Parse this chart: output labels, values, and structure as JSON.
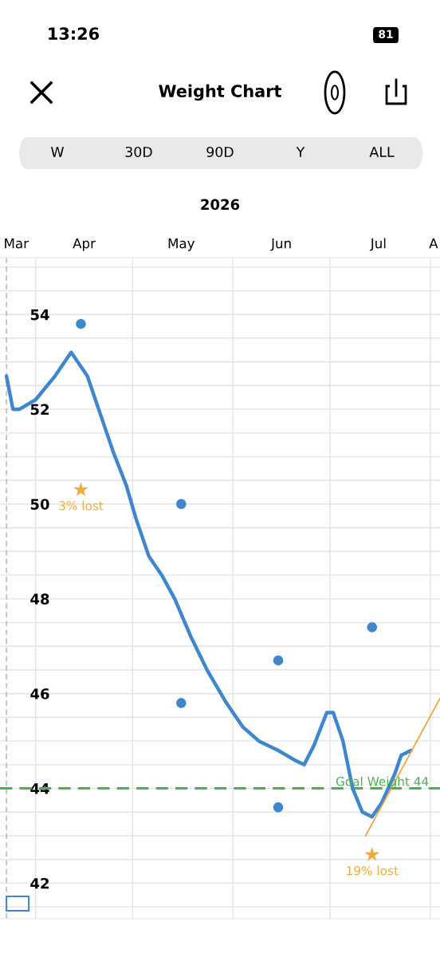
{
  "chart_data": {
    "type": "line",
    "title": "Weight Chart",
    "subtitle": "2026",
    "annotations": [
      "13:26",
      "81",
      "W",
      "30D",
      "90D",
      "Y",
      "ALL",
      {
        "text": "3% lost",
        "x": "2026-04-15",
        "y": 50.3
      },
      {
        "text": "19% lost",
        "x": "2026-07-14",
        "y": 42.6
      }
    ],
    "series": [
      {
        "color": "#3f87cc",
        "x": [
          "2026-03-23",
          "2026-03-25",
          "2026-03-27",
          "2026-04-01",
          "2026-04-07",
          "2026-04-12",
          "2026-04-17",
          "2026-04-21",
          "2026-04-25",
          "2026-04-29",
          "2026-05-02",
          "2026-05-06",
          "2026-05-10",
          "2026-05-14",
          "2026-05-19",
          "2026-05-24",
          "2026-05-30",
          "2026-06-04",
          "2026-06-09",
          "2026-06-15",
          "2026-06-20",
          "2026-06-23",
          "2026-06-26",
          "2026-06-30",
          "2026-07-02",
          "2026-07-05",
          "2026-07-08",
          "2026-07-11",
          "2026-07-14",
          "2026-07-17",
          "2026-07-21",
          "2026-07-23",
          "2026-07-26"
        ],
        "values": [
          52.7,
          52.0,
          52.0,
          52.2,
          52.7,
          53.2,
          52.7,
          51.9,
          51.1,
          50.4,
          49.7,
          48.9,
          48.5,
          48.0,
          47.2,
          46.5,
          45.8,
          45.3,
          45.0,
          44.8,
          44.6,
          44.5,
          44.9,
          45.6,
          45.6,
          45.0,
          44.0,
          43.5,
          43.4,
          43.7,
          44.3,
          44.7,
          44.8
        ]
      },
      {
        "type": "scatter",
        "color": "#3f87cc",
        "marker": "circle",
        "x": [
          "2026-04-15",
          "2026-05-16",
          "2026-05-16",
          "2026-06-15",
          "2026-06-15",
          "2026-07-14"
        ],
        "values": [
          53.8,
          50.0,
          45.8,
          46.7,
          43.6,
          47.4
        ]
      },
      {
        "type": "scatter",
        "color": "#f2a93b",
        "marker": "star",
        "x": [
          "2026-04-15",
          "2026-07-14"
        ],
        "values": [
          50.3,
          42.6
        ]
      },
      {
        "type": "line",
        "color": "#f0a03a",
        "x": [
          "2026-07-12",
          "2026-08-04"
        ],
        "values": [
          43.0,
          45.9
        ]
      }
    ],
    "xlim": [
      "2026-03-21",
      "2026-08-04"
    ],
    "xticks": [
      {
        "value": "2026-03-26",
        "label": "Mar"
      },
      {
        "value": "2026-04-01",
        "label": null
      },
      {
        "value": "2026-04-16",
        "label": "Apr"
      },
      {
        "value": "2026-05-01",
        "label": null
      },
      {
        "value": "2026-05-16",
        "label": "May"
      },
      {
        "value": "2026-06-01",
        "label": null
      },
      {
        "value": "2026-06-16",
        "label": "Jun"
      },
      {
        "value": "2026-07-01",
        "label": null
      },
      {
        "value": "2026-07-16",
        "label": "Jul"
      },
      {
        "value": "2026-08-01",
        "label": null
      },
      {
        "value": "2026-08-02",
        "label": "A"
      }
    ],
    "ylim": [
      41.25,
      55.2
    ],
    "yticks": [
      {
        "value": 41.5,
        "label": null
      },
      42,
      {
        "value": 42.5,
        "label": null
      },
      {
        "value": 43,
        "label": null
      },
      {
        "value": 43.5,
        "label": null
      },
      44,
      {
        "value": 44.5,
        "label": null
      },
      {
        "value": 45,
        "label": null
      },
      {
        "value": 45.5,
        "label": null
      },
      46,
      {
        "value": 46.5,
        "label": null
      },
      {
        "value": 47,
        "label": null
      },
      {
        "value": 47.5,
        "label": null
      },
      48,
      {
        "value": 48.5,
        "label": null
      },
      {
        "value": 49,
        "label": null
      },
      {
        "value": 49.5,
        "label": null
      },
      50,
      {
        "value": 50.5,
        "label": null
      },
      {
        "value": 51,
        "label": null
      },
      {
        "value": 51.5,
        "label": null
      },
      52,
      {
        "value": 52.5,
        "label": null
      },
      {
        "value": 53,
        "label": null
      },
      {
        "value": 53.5,
        "label": null
      },
      54,
      {
        "value": 54.5,
        "label": null
      },
      {
        "value": 55,
        "label": null
      }
    ],
    "grid": true,
    "legend": false,
    "ref_lines": [
      {
        "axis": "y",
        "value": 44,
        "label": "Goal Weight 44",
        "color": "#4caf50",
        "line_style": "dashed"
      },
      {
        "axis": "x",
        "value": "2026-03-23",
        "label": null,
        "color": "#b0b0b0",
        "line_style": "dashed"
      }
    ]
  }
}
